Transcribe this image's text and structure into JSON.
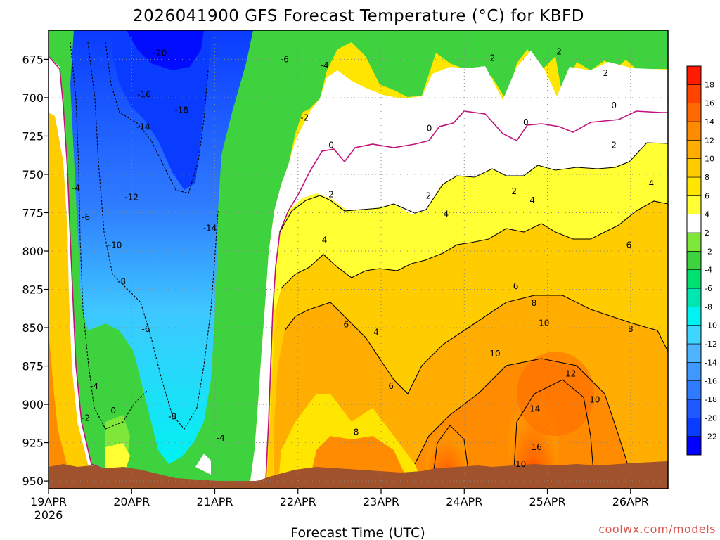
{
  "chart_data": {
    "type": "heatmap",
    "title": "2026041900 GFS Forecast Temperature (°C) for KBFD",
    "xlabel": "Forecast Time (UTC)",
    "ylabel": "",
    "x_ticks": [
      "19APR",
      "20APR",
      "21APR",
      "22APR",
      "23APR",
      "24APR",
      "25APR",
      "26APR"
    ],
    "x_tick_year": "2026",
    "x_range_days": [
      0,
      7.45
    ],
    "y_ticks": [
      675,
      700,
      725,
      750,
      775,
      800,
      825,
      850,
      875,
      900,
      925,
      950
    ],
    "y_range_hpa": [
      656,
      955
    ],
    "grid": true,
    "colorbar": {
      "levels": [
        -22,
        -20,
        -18,
        -16,
        -14,
        -12,
        -10,
        -8,
        -6,
        -4,
        -2,
        2,
        4,
        6,
        8,
        10,
        12,
        14,
        16,
        18
      ],
      "colors": [
        "#0000ff",
        "#0a3cff",
        "#1e5aff",
        "#2f7bff",
        "#3e98ff",
        "#4fb4ff",
        "#3ed6ff",
        "#00f2f2",
        "#00e6b0",
        "#00e070",
        "#3ed23e",
        "#7fe63a",
        "#ffffff",
        "#ffff33",
        "#ffe600",
        "#ffcc00",
        "#ffad00",
        "#ff8c00",
        "#ff6a00",
        "#ff4400",
        "#ff1a00"
      ]
    },
    "terrain_color": "#a0522d",
    "contour_labels": [
      {
        "value": "-20",
        "day": 1.34,
        "hpa": 671
      },
      {
        "value": "-18",
        "day": 1.6,
        "hpa": 708
      },
      {
        "value": "-16",
        "day": 1.15,
        "hpa": 698
      },
      {
        "value": "-14",
        "day": 1.14,
        "hpa": 719
      },
      {
        "value": "-12",
        "day": 1.0,
        "hpa": 765
      },
      {
        "value": "-10",
        "day": 0.8,
        "hpa": 796
      },
      {
        "value": "-8",
        "day": 0.88,
        "hpa": 820
      },
      {
        "value": "-6",
        "day": 1.17,
        "hpa": 851
      },
      {
        "value": "-6",
        "day": 0.45,
        "hpa": 778
      },
      {
        "value": "-4",
        "day": 0.33,
        "hpa": 759
      },
      {
        "value": "-4",
        "day": 0.55,
        "hpa": 888
      },
      {
        "value": "-2",
        "day": 0.45,
        "hpa": 909
      },
      {
        "value": "0",
        "day": 0.78,
        "hpa": 904
      },
      {
        "value": "-8",
        "day": 1.49,
        "hpa": 908
      },
      {
        "value": "-14",
        "day": 1.94,
        "hpa": 785
      },
      {
        "value": "-4",
        "day": 2.07,
        "hpa": 922
      },
      {
        "value": "-6",
        "day": 2.84,
        "hpa": 675
      },
      {
        "value": "-4",
        "day": 3.32,
        "hpa": 679
      },
      {
        "value": "-2",
        "day": 3.08,
        "hpa": 713
      },
      {
        "value": "0",
        "day": 3.4,
        "hpa": 731
      },
      {
        "value": "2",
        "day": 3.4,
        "hpa": 763
      },
      {
        "value": "4",
        "day": 3.32,
        "hpa": 793
      },
      {
        "value": "6",
        "day": 3.58,
        "hpa": 848
      },
      {
        "value": "4",
        "day": 3.94,
        "hpa": 853
      },
      {
        "value": "6",
        "day": 4.12,
        "hpa": 888
      },
      {
        "value": "8",
        "day": 3.7,
        "hpa": 918
      },
      {
        "value": "0",
        "day": 4.58,
        "hpa": 720
      },
      {
        "value": "2",
        "day": 4.57,
        "hpa": 764
      },
      {
        "value": "4",
        "day": 4.78,
        "hpa": 776
      },
      {
        "value": "2",
        "day": 5.6,
        "hpa": 761
      },
      {
        "value": "4",
        "day": 5.82,
        "hpa": 767
      },
      {
        "value": "0",
        "day": 5.74,
        "hpa": 716
      },
      {
        "value": "2",
        "day": 5.34,
        "hpa": 674
      },
      {
        "value": "2",
        "day": 6.14,
        "hpa": 670
      },
      {
        "value": "2",
        "day": 6.7,
        "hpa": 684
      },
      {
        "value": "0",
        "day": 6.8,
        "hpa": 705
      },
      {
        "value": "2",
        "day": 6.8,
        "hpa": 731
      },
      {
        "value": "4",
        "day": 7.25,
        "hpa": 756
      },
      {
        "value": "6",
        "day": 5.62,
        "hpa": 823
      },
      {
        "value": "8",
        "day": 5.84,
        "hpa": 834
      },
      {
        "value": "10",
        "day": 5.96,
        "hpa": 847
      },
      {
        "value": "10",
        "day": 5.37,
        "hpa": 867
      },
      {
        "value": "12",
        "day": 6.28,
        "hpa": 880
      },
      {
        "value": "10",
        "day": 6.57,
        "hpa": 897
      },
      {
        "value": "14",
        "day": 5.85,
        "hpa": 903
      },
      {
        "value": "16",
        "day": 5.87,
        "hpa": 928
      },
      {
        "value": "10",
        "day": 5.68,
        "hpa": 939
      },
      {
        "value": "6",
        "day": 6.98,
        "hpa": 796
      },
      {
        "value": "8",
        "day": 7.0,
        "hpa": 851
      }
    ]
  },
  "footer": {
    "watermark": "coolwx.com/models"
  }
}
